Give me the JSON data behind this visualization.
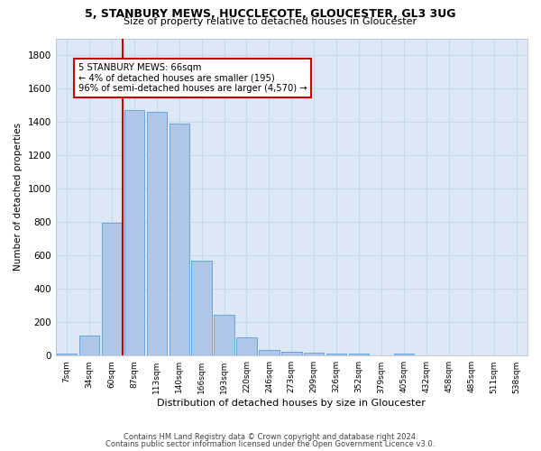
{
  "title1": "5, STANBURY MEWS, HUCCLECOTE, GLOUCESTER, GL3 3UG",
  "title2": "Size of property relative to detached houses in Gloucester",
  "xlabel": "Distribution of detached houses by size in Gloucester",
  "ylabel": "Number of detached properties",
  "bar_labels": [
    "7sqm",
    "34sqm",
    "60sqm",
    "87sqm",
    "113sqm",
    "140sqm",
    "166sqm",
    "193sqm",
    "220sqm",
    "246sqm",
    "273sqm",
    "299sqm",
    "326sqm",
    "352sqm",
    "379sqm",
    "405sqm",
    "432sqm",
    "458sqm",
    "485sqm",
    "511sqm",
    "538sqm"
  ],
  "bar_values": [
    10,
    120,
    795,
    1470,
    1460,
    1390,
    570,
    245,
    110,
    35,
    25,
    20,
    15,
    10,
    0,
    15,
    0,
    0,
    0,
    0,
    0
  ],
  "bar_color": "#aec6e8",
  "bar_edge_color": "#5a9fd4",
  "vline_color": "#cc0000",
  "annotation_text": "5 STANBURY MEWS: 66sqm\n← 4% of detached houses are smaller (195)\n96% of semi-detached houses are larger (4,570) →",
  "annotation_box_color": "#ffffff",
  "annotation_box_edge": "#cc0000",
  "ylim": [
    0,
    1900
  ],
  "yticks": [
    0,
    200,
    400,
    600,
    800,
    1000,
    1200,
    1400,
    1600,
    1800
  ],
  "footer1": "Contains HM Land Registry data © Crown copyright and database right 2024.",
  "footer2": "Contains public sector information licensed under the Open Government Licence v3.0.",
  "bg_color": "#ffffff",
  "grid_color": "#c8d8e8",
  "ax_bg_color": "#dce8f5"
}
